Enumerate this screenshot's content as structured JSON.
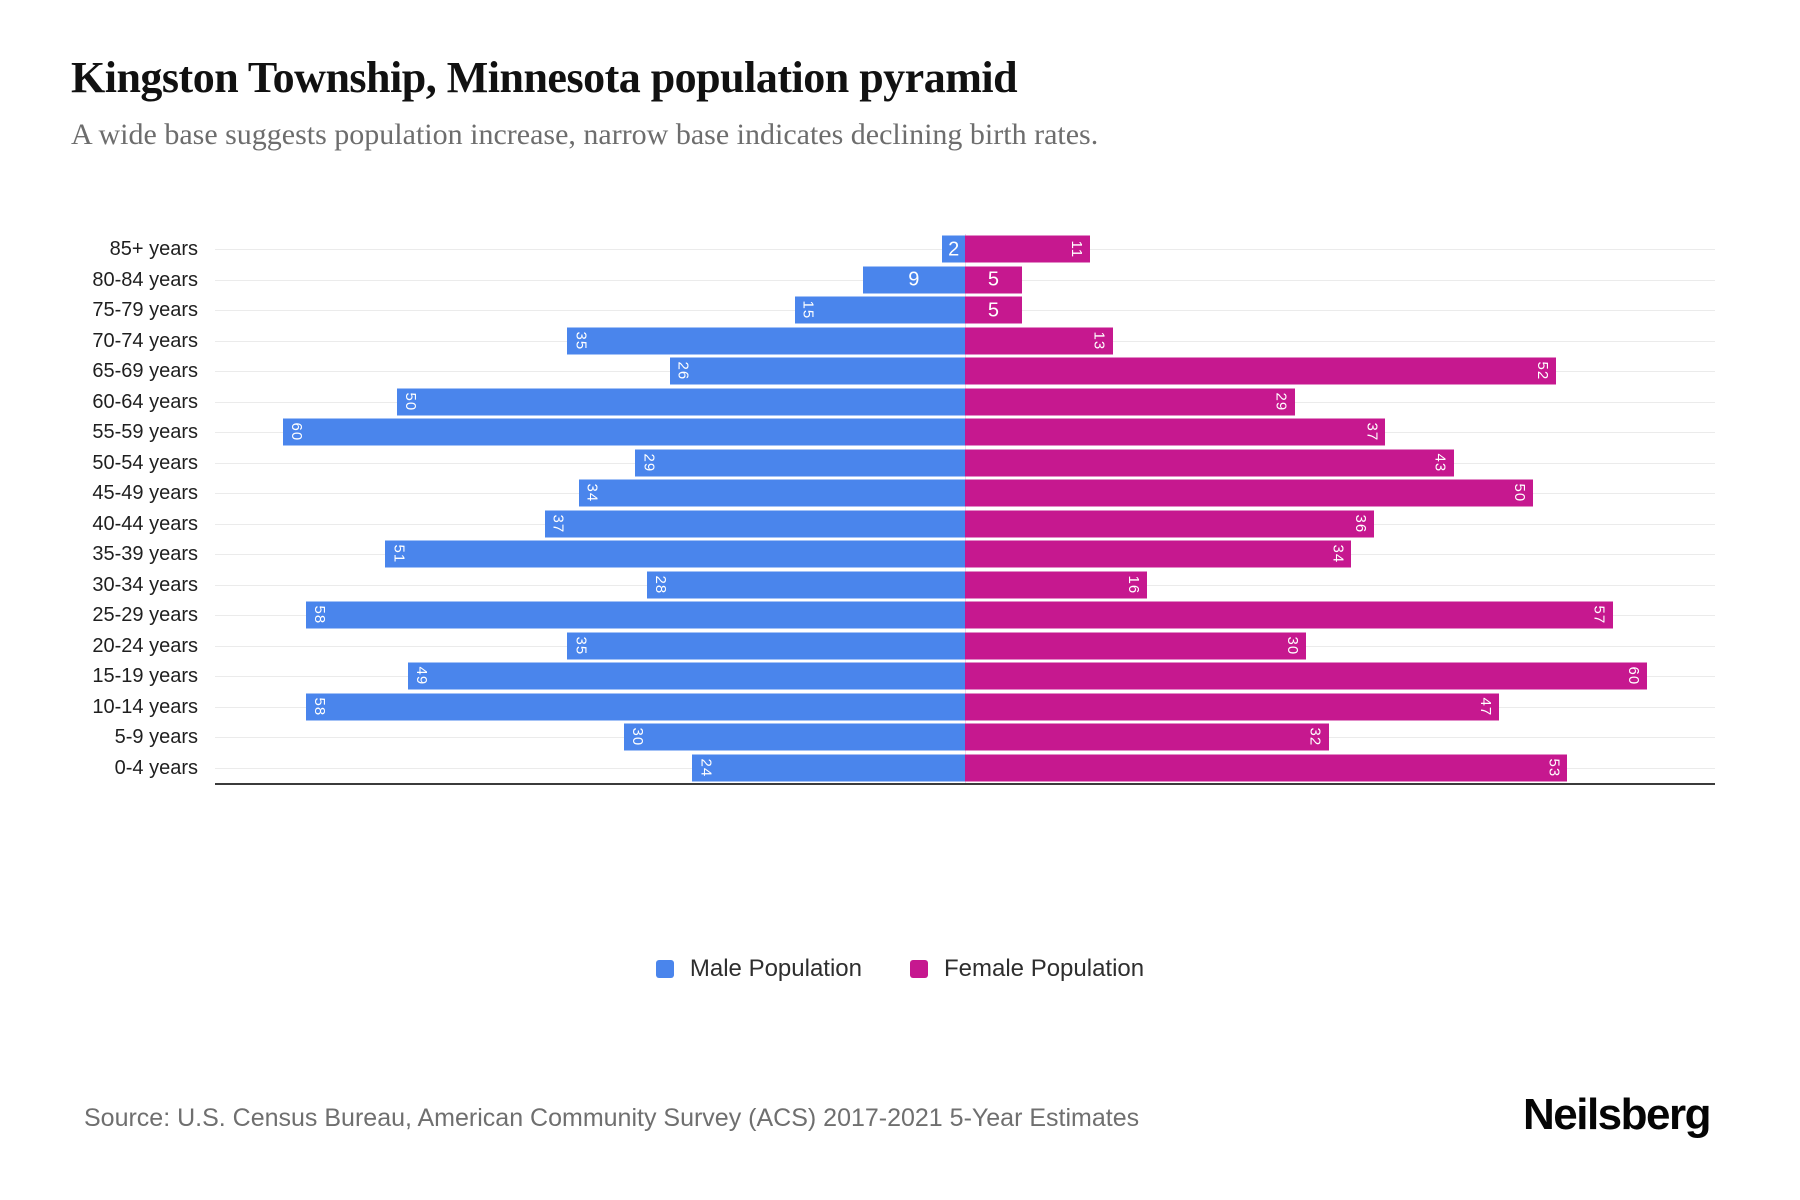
{
  "header": {
    "title": "Kingston Township, Minnesota population pyramid",
    "subtitle": "A wide base suggests population increase, narrow base indicates declining birth rates."
  },
  "chart_data": {
    "type": "bar",
    "variant": "population-pyramid",
    "orientation": "horizontal",
    "categories": [
      "85+ years",
      "80-84 years",
      "75-79 years",
      "70-74 years",
      "65-69 years",
      "60-64 years",
      "55-59 years",
      "50-54 years",
      "45-49 years",
      "40-44 years",
      "35-39 years",
      "30-34 years",
      "25-29 years",
      "20-24 years",
      "15-19 years",
      "10-14 years",
      "5-9 years",
      "0-4 years"
    ],
    "series": [
      {
        "name": "Male Population",
        "side": "left",
        "color": "#4a85ec",
        "values": [
          2,
          9,
          15,
          35,
          26,
          50,
          60,
          29,
          34,
          37,
          51,
          28,
          58,
          35,
          49,
          58,
          30,
          24
        ]
      },
      {
        "name": "Female Population",
        "side": "right",
        "color": "#c6188f",
        "values": [
          11,
          5,
          5,
          13,
          52,
          29,
          37,
          43,
          50,
          36,
          34,
          16,
          57,
          30,
          60,
          47,
          32,
          53
        ]
      }
    ],
    "axis_max_per_side": 66,
    "grid": true,
    "gridline_color": "#ebebeb",
    "axis_line_color": "#3b3b3b",
    "bar_label_color": "#ffffff",
    "legend_position": "bottom"
  },
  "footer": {
    "source": "Source: U.S. Census Bureau, American Community Survey (ACS) 2017-2021 5-Year Estimates",
    "brand": "Neilsberg"
  }
}
